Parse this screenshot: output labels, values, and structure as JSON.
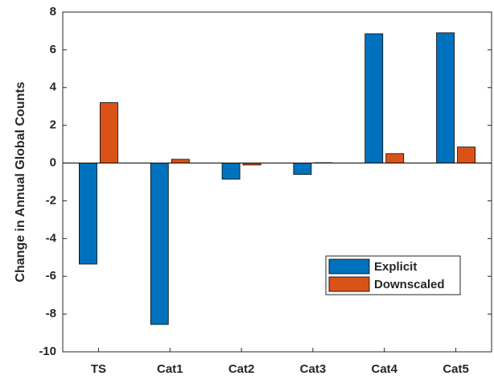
{
  "chart_data": {
    "type": "bar",
    "y_label": "Change in Annual Global Counts",
    "categories": [
      "TS",
      "Cat1",
      "Cat2",
      "Cat3",
      "Cat4",
      "Cat5"
    ],
    "series": [
      {
        "name": "Explicit",
        "color": "#0072BD",
        "values": [
          -5.35,
          -8.55,
          -0.85,
          -0.6,
          6.85,
          6.9
        ]
      },
      {
        "name": "Downscaled",
        "color": "#D95319",
        "values": [
          3.2,
          0.2,
          -0.1,
          0.02,
          0.5,
          0.85
        ]
      }
    ],
    "ylim": [
      -10,
      8
    ],
    "yticks": [
      -10,
      -8,
      -6,
      -4,
      -2,
      0,
      2,
      4,
      6,
      8
    ],
    "legend": "lower-right"
  }
}
